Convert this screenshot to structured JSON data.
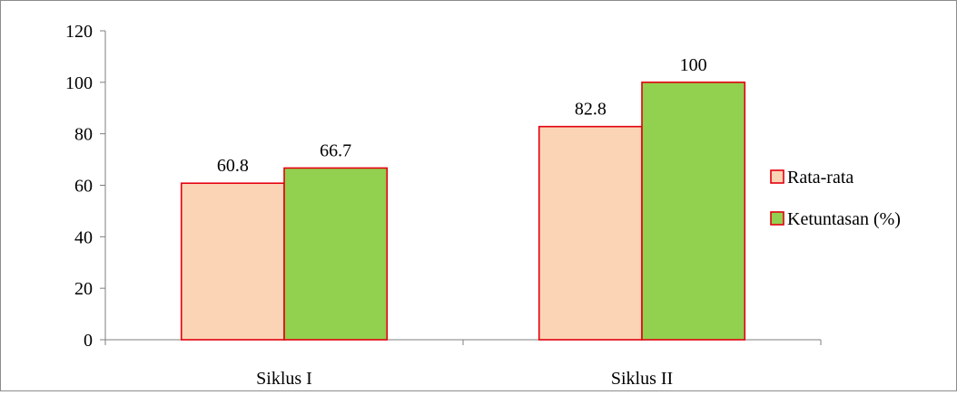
{
  "chart_data": {
    "type": "bar",
    "categories": [
      "Siklus I",
      "Siklus II"
    ],
    "series": [
      {
        "name": "Rata-rata",
        "values": [
          60.8,
          82.8
        ],
        "color": "#fad4b4",
        "value_labels": [
          "60.8",
          "82.8"
        ]
      },
      {
        "name": "Ketuntasan (%)",
        "values": [
          66.7,
          100
        ],
        "color": "#92d050",
        "value_labels": [
          "66.7",
          "100"
        ]
      }
    ],
    "bar_outline_color": "#e3000f",
    "ylim": [
      0,
      120
    ],
    "yticks": [
      "0",
      "20",
      "40",
      "60",
      "80",
      "100",
      "120"
    ],
    "grid": false,
    "legend_position": "right"
  }
}
